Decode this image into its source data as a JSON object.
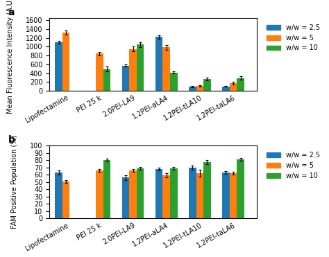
{
  "chart_data": [
    {
      "type": "bar",
      "annotations": [
        "a"
      ],
      "categories": [
        "Lipofectamine",
        "PEI 25 k",
        "2.0PEI-LA9",
        "1.2PEI-aLA4",
        "1.2PEI-tLA10",
        "1.2PEI-taLA6"
      ],
      "ylabel": "Mean Fluorescence Intensity (A.U.)",
      "ylim": [
        0,
        1650
      ],
      "yticks": [
        0,
        200,
        400,
        600,
        800,
        1000,
        1200,
        1400,
        1600
      ],
      "legend": "upper left",
      "series": [
        {
          "name": "w/w = 2.5",
          "values": [
            1100,
            null,
            575,
            1220,
            100,
            105
          ],
          "errors": [
            35,
            null,
            30,
            40,
            15,
            15
          ]
        },
        {
          "name": "w/w = 5",
          "values": [
            1320,
            845,
            950,
            985,
            115,
            175
          ],
          "errors": [
            45,
            35,
            50,
            50,
            20,
            25
          ]
        },
        {
          "name": "w/w = 10",
          "values": [
            null,
            495,
            1050,
            415,
            270,
            290
          ],
          "errors": [
            null,
            55,
            55,
            25,
            35,
            35
          ]
        }
      ]
    },
    {
      "type": "bar",
      "annotations": [
        "b"
      ],
      "categories": [
        "Lipofectamine",
        "PEI 25 k",
        "2.0PEI-LA9",
        "1.2PEI-aLA4",
        "1.2PEI-tLA10",
        "1.2PEI-taLA6"
      ],
      "ylabel": "FAM Positive Population (%)",
      "ylim": [
        0,
        100
      ],
      "yticks": [
        0,
        10,
        20,
        30,
        40,
        50,
        60,
        70,
        80,
        90,
        100
      ],
      "legend": "upper left",
      "series": [
        {
          "name": "w/w = 2.5",
          "values": [
            63,
            null,
            56,
            68,
            70,
            63
          ],
          "errors": [
            3,
            null,
            3,
            2,
            3,
            2
          ]
        },
        {
          "name": "w/w = 5",
          "values": [
            51,
            66,
            66,
            59,
            62,
            62
          ],
          "errors": [
            2,
            2,
            2,
            3,
            5,
            2
          ]
        },
        {
          "name": "w/w = 10",
          "values": [
            null,
            80,
            69,
            69,
            77,
            81
          ],
          "errors": [
            null,
            2,
            2,
            2,
            3,
            2
          ]
        }
      ]
    }
  ]
}
